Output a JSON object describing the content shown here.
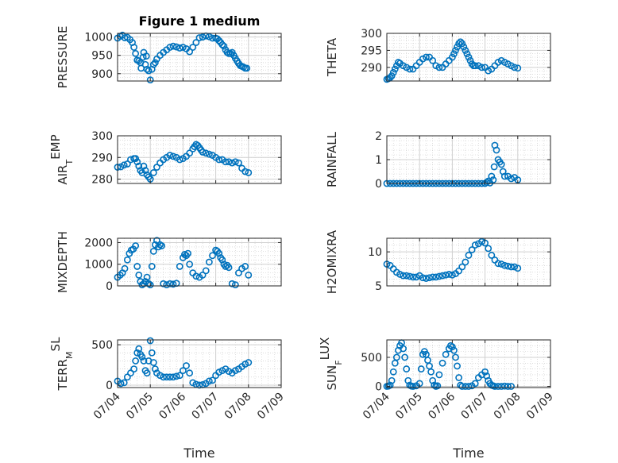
{
  "colors": {
    "marker": "#0072BD",
    "axis": "#262626",
    "grid": "#d0d0d0",
    "background": "#ffffff"
  },
  "chart_data": [
    {
      "type": "scatter",
      "title": "Figure 1 medium",
      "xlabel": "",
      "ylabel": "PRESSURE",
      "ylim": [
        880,
        1010
      ],
      "yticks": [
        "900",
        "950",
        "1000"
      ],
      "ytickvals": [
        900,
        950,
        1000
      ],
      "xlim": [
        0,
        5
      ],
      "xticks": [
        "07/04",
        "07/05",
        "07/06",
        "07/07",
        "07/08",
        "07/09"
      ],
      "show_xticklabels": false,
      "grid": true,
      "minor_grid": true,
      "x": [
        0,
        0.08,
        0.15,
        0.22,
        0.3,
        0.38,
        0.45,
        0.5,
        0.55,
        0.6,
        0.65,
        0.7,
        0.72,
        0.78,
        0.8,
        0.85,
        0.88,
        0.9,
        0.95,
        1.0,
        1.05,
        1.1,
        1.15,
        1.2,
        1.3,
        1.4,
        1.5,
        1.6,
        1.7,
        1.8,
        1.9,
        2.0,
        2.1,
        2.2,
        2.3,
        2.4,
        2.5,
        2.6,
        2.7,
        2.8,
        2.9,
        3.0,
        3.05,
        3.1,
        3.15,
        3.2,
        3.25,
        3.3,
        3.35,
        3.4,
        3.45,
        3.5,
        3.55,
        3.6,
        3.65,
        3.7,
        3.75,
        3.8,
        3.85,
        3.9,
        3.95
      ],
      "y": [
        997,
        1002,
        1005,
        998,
        999,
        993,
        985,
        972,
        955,
        937,
        935,
        930,
        915,
        945,
        958,
        925,
        948,
        912,
        908,
        883,
        912,
        925,
        930,
        940,
        950,
        958,
        965,
        972,
        975,
        973,
        970,
        972,
        968,
        960,
        972,
        985,
        998,
        1000,
        1003,
        1001,
        997,
        997,
        995,
        990,
        985,
        979,
        975,
        965,
        958,
        955,
        955,
        958,
        950,
        942,
        935,
        928,
        922,
        920,
        918,
        915,
        915
      ]
    },
    {
      "type": "scatter",
      "title": "",
      "xlabel": "",
      "ylabel": "THETA",
      "ylim": [
        286,
        300
      ],
      "yticks": [
        "290",
        "295",
        "300"
      ],
      "ytickvals": [
        290,
        295,
        300
      ],
      "xlim": [
        0,
        5
      ],
      "xticks": [
        "07/04",
        "07/05",
        "07/06",
        "07/07",
        "07/08",
        "07/09"
      ],
      "show_xticklabels": false,
      "grid": true,
      "minor_grid": true,
      "x": [
        0,
        0.05,
        0.1,
        0.15,
        0.2,
        0.25,
        0.3,
        0.35,
        0.4,
        0.5,
        0.6,
        0.7,
        0.8,
        0.9,
        1.0,
        1.1,
        1.2,
        1.3,
        1.4,
        1.5,
        1.6,
        1.7,
        1.8,
        1.9,
        2.0,
        2.05,
        2.1,
        2.15,
        2.2,
        2.25,
        2.3,
        2.35,
        2.4,
        2.45,
        2.5,
        2.55,
        2.6,
        2.65,
        2.7,
        2.8,
        2.9,
        3.0,
        3.1,
        3.2,
        3.3,
        3.4,
        3.5,
        3.6,
        3.7,
        3.8,
        3.9,
        4.0
      ],
      "y": [
        286.5,
        286.7,
        287,
        287.5,
        288.5,
        289.5,
        290.5,
        291.5,
        291.2,
        290.5,
        290,
        289.5,
        289.5,
        290.5,
        291.5,
        292.5,
        293,
        293,
        292,
        290.5,
        290,
        290,
        291,
        292,
        293,
        294,
        295,
        296,
        297,
        297.5,
        297,
        296,
        295,
        294,
        293,
        292,
        291,
        290.5,
        290.5,
        290.5,
        290,
        290,
        289,
        289.5,
        290.5,
        291.5,
        292,
        291.5,
        291,
        290.5,
        290,
        289.8
      ]
    },
    {
      "type": "scatter",
      "title": "",
      "xlabel": "",
      "ylabel": "AIR_TEMP",
      "ylim": [
        278,
        300
      ],
      "yticks": [
        "280",
        "290",
        "300"
      ],
      "ytickvals": [
        280,
        290,
        300
      ],
      "xlim": [
        0,
        5
      ],
      "xticks": [
        "07/04",
        "07/05",
        "07/06",
        "07/07",
        "07/08",
        "07/09"
      ],
      "show_xticklabels": false,
      "grid": true,
      "minor_grid": true,
      "x": [
        0,
        0.1,
        0.2,
        0.3,
        0.4,
        0.5,
        0.55,
        0.6,
        0.65,
        0.7,
        0.75,
        0.8,
        0.85,
        0.9,
        0.95,
        1.0,
        1.1,
        1.2,
        1.3,
        1.4,
        1.5,
        1.6,
        1.7,
        1.8,
        1.9,
        2.0,
        2.1,
        2.2,
        2.3,
        2.35,
        2.4,
        2.45,
        2.5,
        2.55,
        2.6,
        2.7,
        2.8,
        2.9,
        3.0,
        3.1,
        3.2,
        3.3,
        3.4,
        3.5,
        3.6,
        3.7,
        3.8,
        3.9,
        4.0
      ],
      "y": [
        285.5,
        285.7,
        286.5,
        287,
        289,
        289.5,
        289.5,
        288,
        286,
        284,
        283,
        286,
        284,
        282,
        281,
        280,
        283,
        285.5,
        287.5,
        289,
        290,
        291,
        290.5,
        290,
        289,
        289.5,
        290.5,
        292,
        294,
        295,
        296,
        295.5,
        294.5,
        293.5,
        292.5,
        292,
        291.5,
        291,
        290,
        289,
        289,
        288,
        288,
        287.5,
        288,
        287.5,
        285,
        283.5,
        283
      ]
    },
    {
      "type": "scatter",
      "title": "",
      "xlabel": "",
      "ylabel": "RAINFALL",
      "ylim": [
        0,
        2
      ],
      "yticks": [
        "0",
        "1",
        "2"
      ],
      "ytickvals": [
        0,
        1,
        2
      ],
      "xlim": [
        0,
        5
      ],
      "xticks": [
        "07/04",
        "07/05",
        "07/06",
        "07/07",
        "07/08",
        "07/09"
      ],
      "show_xticklabels": false,
      "grid": true,
      "minor_grid": true,
      "x": [
        0,
        0.1,
        0.2,
        0.3,
        0.4,
        0.5,
        0.6,
        0.7,
        0.8,
        0.9,
        1.0,
        1.1,
        1.2,
        1.3,
        1.4,
        1.5,
        1.6,
        1.7,
        1.8,
        1.9,
        2.0,
        2.1,
        2.2,
        2.3,
        2.4,
        2.5,
        2.6,
        2.7,
        2.8,
        2.9,
        3.0,
        3.05,
        3.1,
        3.15,
        3.2,
        3.25,
        3.28,
        3.3,
        3.35,
        3.4,
        3.45,
        3.5,
        3.55,
        3.6,
        3.7,
        3.8,
        3.9,
        4.0
      ],
      "y": [
        0,
        0,
        0,
        0,
        0,
        0,
        0,
        0,
        0,
        0,
        0,
        0,
        0,
        0,
        0,
        0,
        0,
        0,
        0,
        0,
        0,
        0,
        0,
        0,
        0,
        0,
        0,
        0,
        0,
        0,
        0,
        0.05,
        0.1,
        0.02,
        0.3,
        0.15,
        0.7,
        1.6,
        1.4,
        1.0,
        0.9,
        0.8,
        0.5,
        0.3,
        0.3,
        0.2,
        0.25,
        0.15
      ]
    },
    {
      "type": "scatter",
      "title": "",
      "xlabel": "",
      "ylabel": "MIXDEPTH",
      "ylim": [
        0,
        2200
      ],
      "yticks": [
        "0",
        "1000",
        "2000"
      ],
      "ytickvals": [
        0,
        1000,
        2000
      ],
      "xlim": [
        0,
        5
      ],
      "xticks": [
        "07/04",
        "07/05",
        "07/06",
        "07/07",
        "07/08",
        "07/09"
      ],
      "show_xticklabels": false,
      "grid": true,
      "minor_grid": true,
      "x": [
        0,
        0.08,
        0.15,
        0.22,
        0.3,
        0.36,
        0.42,
        0.48,
        0.55,
        0.6,
        0.65,
        0.7,
        0.75,
        0.8,
        0.85,
        0.9,
        0.95,
        1.0,
        1.05,
        1.1,
        1.15,
        1.2,
        1.25,
        1.3,
        1.35,
        1.4,
        1.5,
        1.6,
        1.7,
        1.8,
        1.9,
        2.0,
        2.05,
        2.1,
        2.15,
        2.2,
        2.3,
        2.4,
        2.5,
        2.6,
        2.7,
        2.8,
        2.9,
        3.0,
        3.05,
        3.1,
        3.15,
        3.2,
        3.25,
        3.3,
        3.35,
        3.4,
        3.5,
        3.6,
        3.7,
        3.8,
        3.9,
        4.0
      ],
      "y": [
        400,
        500,
        600,
        800,
        1200,
        1500,
        1650,
        1700,
        1850,
        900,
        500,
        200,
        50,
        100,
        200,
        400,
        100,
        50,
        900,
        1600,
        1900,
        2100,
        1800,
        1900,
        1850,
        100,
        50,
        100,
        80,
        120,
        900,
        1300,
        1450,
        1400,
        1500,
        1000,
        600,
        450,
        400,
        500,
        700,
        1100,
        1400,
        1650,
        1600,
        1500,
        1300,
        1200,
        1000,
        900,
        950,
        850,
        100,
        50,
        600,
        800,
        900,
        500
      ]
    },
    {
      "type": "scatter",
      "title": "",
      "xlabel": "",
      "ylabel": "H2OMIXRA",
      "ylim": [
        5,
        12
      ],
      "yticks": [
        "5",
        "10"
      ],
      "ytickvals": [
        5,
        10
      ],
      "xlim": [
        0,
        5
      ],
      "xticks": [
        "07/04",
        "07/05",
        "07/06",
        "07/07",
        "07/08",
        "07/09"
      ],
      "show_xticklabels": false,
      "grid": true,
      "minor_grid": true,
      "x": [
        0,
        0.1,
        0.2,
        0.3,
        0.4,
        0.5,
        0.6,
        0.7,
        0.8,
        0.9,
        1.0,
        1.1,
        1.2,
        1.3,
        1.4,
        1.5,
        1.6,
        1.7,
        1.8,
        1.9,
        2.0,
        2.1,
        2.2,
        2.3,
        2.4,
        2.5,
        2.6,
        2.7,
        2.8,
        2.9,
        3.0,
        3.1,
        3.2,
        3.3,
        3.4,
        3.5,
        3.6,
        3.7,
        3.8,
        3.9,
        4.0
      ],
      "y": [
        8.2,
        8,
        7.5,
        7,
        6.7,
        6.5,
        6.5,
        6.4,
        6.3,
        6.3,
        6.5,
        6.2,
        6.1,
        6.2,
        6.3,
        6.3,
        6.4,
        6.5,
        6.6,
        6.7,
        6.6,
        6.8,
        7.2,
        7.8,
        8.5,
        9.5,
        10.3,
        11,
        11.2,
        11.5,
        11.3,
        10.5,
        9.5,
        8.8,
        8.3,
        8.2,
        8,
        7.9,
        7.8,
        7.8,
        7.6
      ]
    },
    {
      "type": "scatter",
      "title": "",
      "xlabel": "Time",
      "ylabel": "TERR_MSL",
      "ylim": [
        -30,
        560
      ],
      "yticks": [
        "0",
        "500"
      ],
      "ytickvals": [
        0,
        500
      ],
      "xlim": [
        0,
        5
      ],
      "xticks": [
        "07/04",
        "07/05",
        "07/06",
        "07/07",
        "07/08",
        "07/09"
      ],
      "show_xticklabels": true,
      "grid": true,
      "minor_grid": true,
      "x": [
        0,
        0.1,
        0.2,
        0.3,
        0.4,
        0.5,
        0.55,
        0.6,
        0.65,
        0.7,
        0.75,
        0.8,
        0.85,
        0.9,
        0.95,
        1.0,
        1.05,
        1.1,
        1.15,
        1.2,
        1.3,
        1.4,
        1.5,
        1.6,
        1.7,
        1.8,
        1.9,
        2.0,
        2.1,
        2.2,
        2.3,
        2.4,
        2.5,
        2.6,
        2.7,
        2.8,
        2.9,
        3.0,
        3.1,
        3.2,
        3.3,
        3.4,
        3.5,
        3.6,
        3.7,
        3.8,
        3.9,
        4.0
      ],
      "y": [
        50,
        20,
        30,
        100,
        150,
        200,
        300,
        400,
        450,
        380,
        350,
        300,
        180,
        150,
        300,
        550,
        400,
        280,
        200,
        150,
        120,
        100,
        100,
        100,
        100,
        110,
        120,
        180,
        240,
        150,
        30,
        10,
        0,
        5,
        20,
        50,
        60,
        120,
        160,
        180,
        200,
        170,
        150,
        180,
        200,
        230,
        260,
        280
      ]
    },
    {
      "type": "scatter",
      "title": "",
      "xlabel": "Time",
      "ylabel": "SUN_FLUX",
      "ylim": [
        -20,
        800
      ],
      "yticks": [
        "0",
        "500"
      ],
      "ytickvals": [
        0,
        500
      ],
      "xlim": [
        0,
        5
      ],
      "xticks": [
        "07/04",
        "07/05",
        "07/06",
        "07/07",
        "07/08",
        "07/09"
      ],
      "show_xticklabels": true,
      "grid": true,
      "minor_grid": true,
      "x": [
        0,
        0.05,
        0.1,
        0.15,
        0.2,
        0.25,
        0.3,
        0.35,
        0.4,
        0.45,
        0.5,
        0.55,
        0.6,
        0.65,
        0.7,
        0.75,
        0.8,
        0.9,
        1.0,
        1.05,
        1.1,
        1.15,
        1.2,
        1.25,
        1.3,
        1.35,
        1.4,
        1.45,
        1.5,
        1.55,
        1.6,
        1.7,
        1.8,
        1.9,
        1.95,
        2.0,
        2.05,
        2.1,
        2.15,
        2.2,
        2.25,
        2.3,
        2.4,
        2.5,
        2.6,
        2.7,
        2.8,
        2.9,
        3.0,
        3.05,
        3.1,
        3.15,
        3.2,
        3.25,
        3.3,
        3.4,
        3.5,
        3.6,
        3.7,
        3.8
      ],
      "y": [
        0,
        5,
        20,
        100,
        250,
        400,
        500,
        620,
        700,
        750,
        650,
        500,
        300,
        100,
        20,
        5,
        0,
        10,
        50,
        300,
        550,
        600,
        550,
        450,
        350,
        250,
        100,
        20,
        0,
        10,
        200,
        400,
        550,
        650,
        700,
        680,
        620,
        500,
        350,
        150,
        20,
        0,
        0,
        0,
        10,
        50,
        150,
        200,
        250,
        180,
        100,
        50,
        20,
        10,
        0,
        0,
        0,
        5,
        0,
        0
      ]
    }
  ]
}
